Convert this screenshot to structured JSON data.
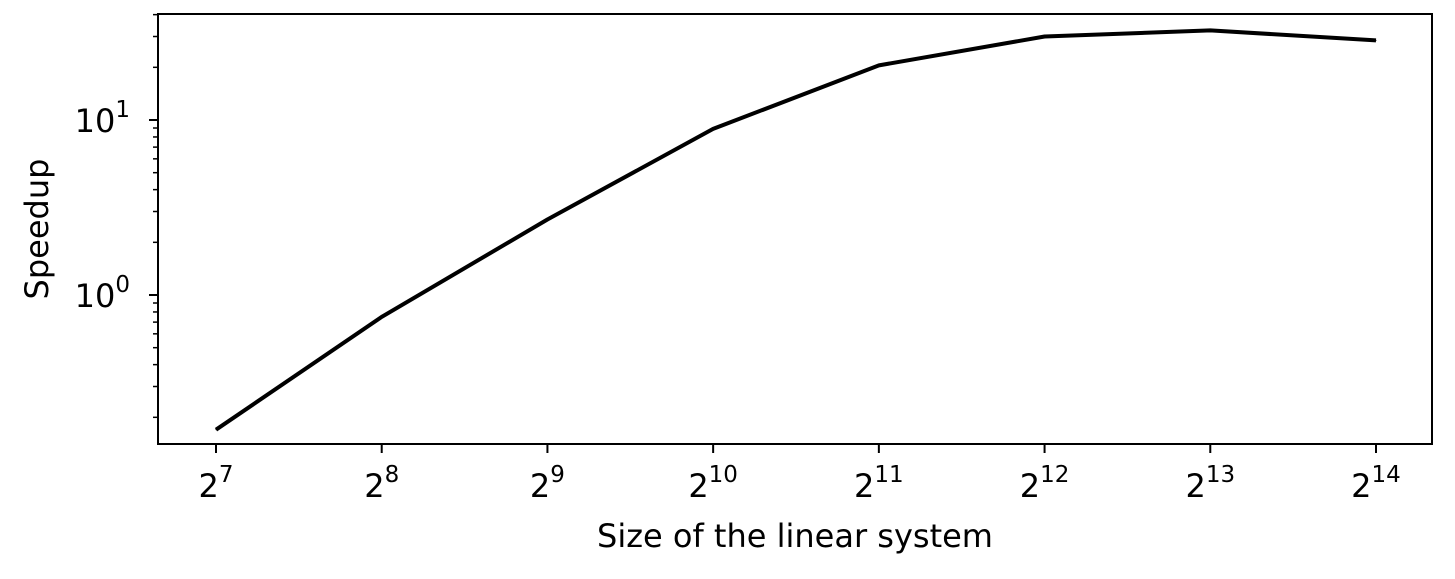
{
  "chart_data": {
    "type": "line",
    "title": "",
    "xlabel": "Size of the linear system",
    "ylabel": "Speedup",
    "x_scale": "log2",
    "y_scale": "log10",
    "grid": false,
    "x": [
      128,
      256,
      512,
      1024,
      2048,
      4096,
      8192,
      16384
    ],
    "x_ticks": [
      {
        "base": "2",
        "exp": "7"
      },
      {
        "base": "2",
        "exp": "8"
      },
      {
        "base": "2",
        "exp": "9"
      },
      {
        "base": "2",
        "exp": "10"
      },
      {
        "base": "2",
        "exp": "11"
      },
      {
        "base": "2",
        "exp": "12"
      },
      {
        "base": "2",
        "exp": "13"
      },
      {
        "base": "2",
        "exp": "14"
      }
    ],
    "y_major_ticks": [
      {
        "value": 1,
        "base": "10",
        "exp": "0"
      },
      {
        "value": 10,
        "base": "10",
        "exp": "1"
      }
    ],
    "ylim": [
      0.16,
      43
    ],
    "series": [
      {
        "color": "#000000",
        "values": [
          0.17,
          0.75,
          2.7,
          8.9,
          20.5,
          30.0,
          32.5,
          28.5
        ]
      }
    ]
  }
}
